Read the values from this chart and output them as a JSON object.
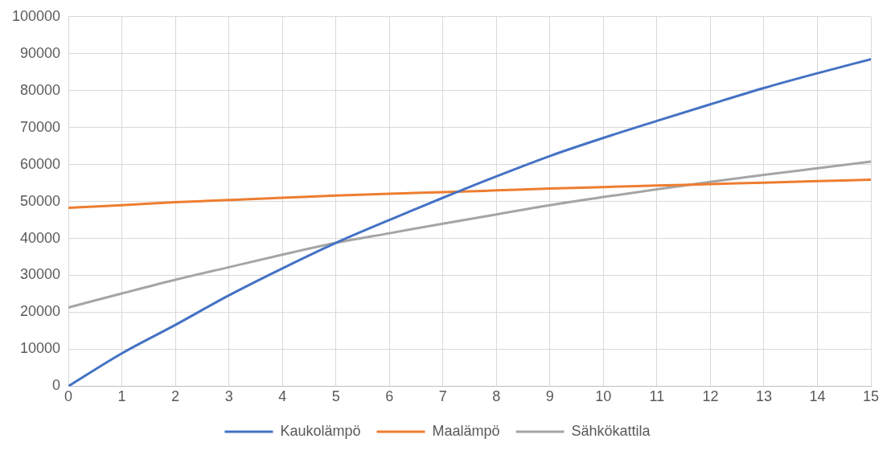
{
  "chart_data": {
    "type": "line",
    "x": [
      0,
      1,
      2,
      3,
      4,
      5,
      6,
      7,
      8,
      9,
      10,
      11,
      12,
      13,
      14,
      15
    ],
    "series": [
      {
        "name": "Kaukolämpö",
        "color": "#4472c4",
        "values": [
          0,
          8900,
          16600,
          24600,
          31900,
          38800,
          45000,
          51000,
          56800,
          62300,
          67200,
          71800,
          76300,
          80700,
          84700,
          88500
        ]
      },
      {
        "name": "Maalämpö",
        "color": "#ed7d31",
        "values": [
          48300,
          49000,
          49800,
          50400,
          51000,
          51600,
          52100,
          52500,
          53000,
          53500,
          53900,
          54300,
          54700,
          55100,
          55500,
          55900
        ]
      },
      {
        "name": "Sähkökattila",
        "color": "#a5a5a5",
        "values": [
          21300,
          25100,
          28800,
          32200,
          35600,
          38800,
          41400,
          44000,
          46500,
          49000,
          51200,
          53300,
          55300,
          57200,
          59000,
          60800
        ]
      }
    ],
    "xlim": [
      0,
      15
    ],
    "xticks": [
      0,
      1,
      2,
      3,
      4,
      5,
      6,
      7,
      8,
      9,
      10,
      11,
      12,
      13,
      14,
      15
    ],
    "ylim": [
      0,
      100000
    ],
    "yticks": [
      0,
      10000,
      20000,
      30000,
      40000,
      50000,
      60000,
      70000,
      80000,
      90000,
      100000
    ],
    "grid": true,
    "legend": "bottom",
    "marker": "none",
    "line_style": "solid"
  }
}
